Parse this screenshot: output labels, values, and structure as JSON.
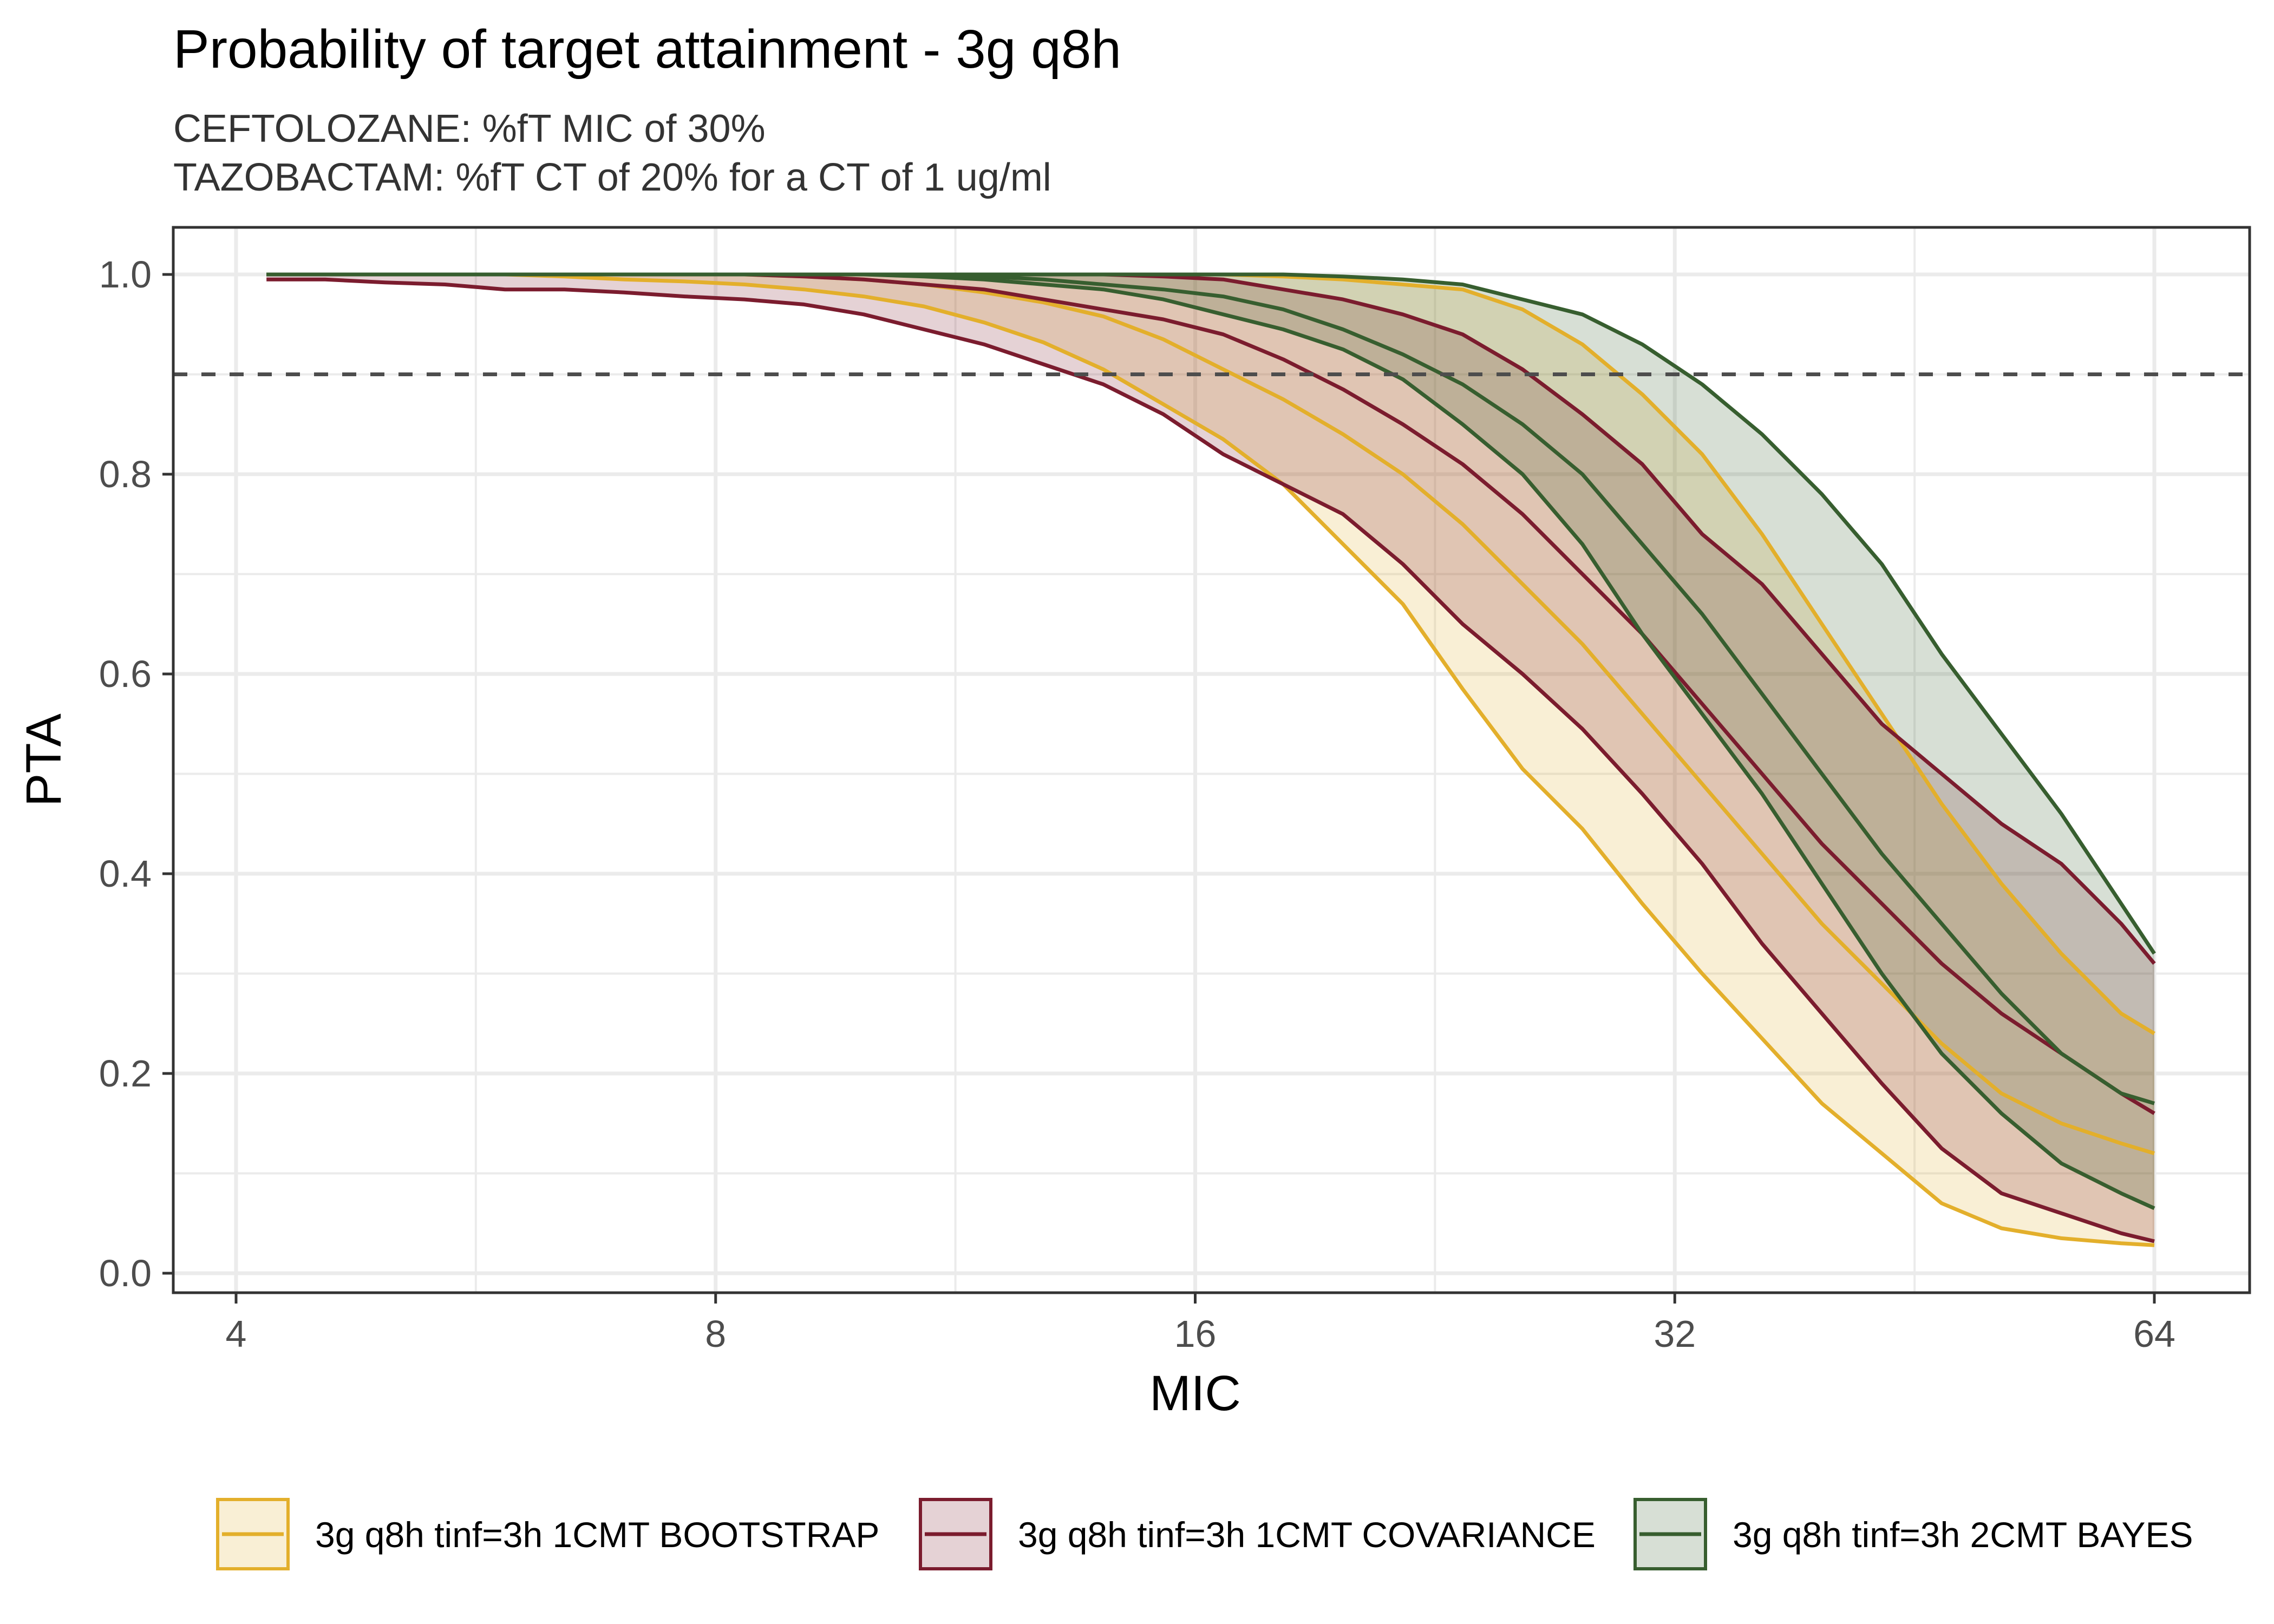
{
  "chart_data": {
    "type": "line",
    "subtype": "line with confidence ribbons",
    "title": "Probability of target attainment - 3g q8h",
    "subtitle_lines": [
      "CEFTOLOZANE: %fT MIC of 30%",
      "TAZOBACTAM: %fT CT of 20% for a CT of 1 ug/ml"
    ],
    "xlabel": "MIC",
    "ylabel": "PTA",
    "x_scale": "log2",
    "xlim": [
      3.7,
      70
    ],
    "ylim": [
      -0.02,
      1.05
    ],
    "x_ticks": [
      4,
      8,
      16,
      32,
      64
    ],
    "x_tick_labels": [
      "4",
      "8",
      "16",
      "32",
      "64"
    ],
    "y_ticks": [
      0.0,
      0.2,
      0.4,
      0.6,
      0.8,
      1.0
    ],
    "y_tick_labels": [
      "0.0",
      "0.2",
      "0.4",
      "0.6",
      "0.8",
      "1.0"
    ],
    "grid": true,
    "reference_line": {
      "y": 0.9,
      "style": "dashed",
      "color": "#4d4d4d"
    },
    "legend": {
      "position": "bottom",
      "orientation": "horizontal"
    },
    "x": [
      4.18,
      4.55,
      4.96,
      5.41,
      5.9,
      6.43,
      7.01,
      7.65,
      8.34,
      9.09,
      9.91,
      10.81,
      11.79,
      12.85,
      14.01,
      15.28,
      16.66,
      18.17,
      19.81,
      21.6,
      23.55,
      25.68,
      28.0,
      30.53,
      33.29,
      36.3,
      39.58,
      43.16,
      47.06,
      51.31,
      55.95,
      61.0,
      64.0
    ],
    "series": [
      {
        "name": "3g q8h tinf=3h 1CMT BOOTSTRAP",
        "color": "#E3AF2B",
        "fill": "#F8E8C4",
        "lower": [
          1.0,
          1.0,
          1.0,
          1.0,
          1.0,
          0.998,
          0.995,
          0.993,
          0.99,
          0.985,
          0.978,
          0.968,
          0.952,
          0.932,
          0.905,
          0.87,
          0.835,
          0.79,
          0.73,
          0.67,
          0.585,
          0.505,
          0.445,
          0.37,
          0.3,
          0.235,
          0.17,
          0.12,
          0.07,
          0.045,
          0.035,
          0.03,
          0.028
        ],
        "median": [
          1.0,
          1.0,
          1.0,
          1.0,
          1.0,
          1.0,
          1.0,
          1.0,
          1.0,
          0.998,
          0.995,
          0.99,
          0.982,
          0.972,
          0.958,
          0.935,
          0.905,
          0.875,
          0.84,
          0.8,
          0.75,
          0.69,
          0.63,
          0.56,
          0.49,
          0.42,
          0.35,
          0.29,
          0.23,
          0.18,
          0.15,
          0.13,
          0.12
        ],
        "upper": [
          1.0,
          1.0,
          1.0,
          1.0,
          1.0,
          1.0,
          1.0,
          1.0,
          1.0,
          1.0,
          1.0,
          1.0,
          1.0,
          1.0,
          1.0,
          1.0,
          1.0,
          0.998,
          0.995,
          0.99,
          0.985,
          0.965,
          0.93,
          0.88,
          0.82,
          0.74,
          0.65,
          0.56,
          0.47,
          0.39,
          0.32,
          0.26,
          0.24
        ]
      },
      {
        "name": "3g q8h tinf=3h 1CMT COVARIANCE",
        "color": "#7B1C2E",
        "fill": "#E4CFD3",
        "lower": [
          0.995,
          0.995,
          0.992,
          0.99,
          0.985,
          0.985,
          0.982,
          0.978,
          0.975,
          0.97,
          0.96,
          0.945,
          0.93,
          0.91,
          0.89,
          0.86,
          0.82,
          0.79,
          0.76,
          0.71,
          0.65,
          0.6,
          0.545,
          0.48,
          0.41,
          0.33,
          0.26,
          0.19,
          0.125,
          0.08,
          0.06,
          0.04,
          0.032
        ],
        "median": [
          1.0,
          1.0,
          1.0,
          1.0,
          1.0,
          1.0,
          1.0,
          1.0,
          1.0,
          0.998,
          0.995,
          0.99,
          0.985,
          0.975,
          0.965,
          0.955,
          0.94,
          0.915,
          0.885,
          0.85,
          0.81,
          0.76,
          0.7,
          0.64,
          0.57,
          0.5,
          0.43,
          0.37,
          0.31,
          0.26,
          0.22,
          0.18,
          0.16
        ],
        "upper": [
          1.0,
          1.0,
          1.0,
          1.0,
          1.0,
          1.0,
          1.0,
          1.0,
          1.0,
          1.0,
          1.0,
          1.0,
          1.0,
          1.0,
          1.0,
          0.998,
          0.995,
          0.985,
          0.975,
          0.96,
          0.94,
          0.905,
          0.86,
          0.81,
          0.74,
          0.69,
          0.62,
          0.55,
          0.5,
          0.45,
          0.41,
          0.35,
          0.31
        ]
      },
      {
        "name": "3g q8h tinf=3h 2CMT BAYES",
        "color": "#375E2F",
        "fill": "#D6E0D3",
        "lower": [
          1.0,
          1.0,
          1.0,
          1.0,
          1.0,
          1.0,
          1.0,
          1.0,
          1.0,
          1.0,
          1.0,
          0.998,
          0.995,
          0.99,
          0.985,
          0.975,
          0.96,
          0.945,
          0.925,
          0.895,
          0.85,
          0.8,
          0.73,
          0.64,
          0.56,
          0.48,
          0.39,
          0.3,
          0.22,
          0.16,
          0.11,
          0.08,
          0.065
        ],
        "median": [
          1.0,
          1.0,
          1.0,
          1.0,
          1.0,
          1.0,
          1.0,
          1.0,
          1.0,
          1.0,
          1.0,
          1.0,
          0.998,
          0.995,
          0.99,
          0.985,
          0.978,
          0.965,
          0.945,
          0.92,
          0.89,
          0.85,
          0.8,
          0.73,
          0.66,
          0.58,
          0.5,
          0.42,
          0.35,
          0.28,
          0.22,
          0.18,
          0.17
        ],
        "upper": [
          1.0,
          1.0,
          1.0,
          1.0,
          1.0,
          1.0,
          1.0,
          1.0,
          1.0,
          1.0,
          1.0,
          1.0,
          1.0,
          1.0,
          1.0,
          1.0,
          1.0,
          1.0,
          0.998,
          0.995,
          0.99,
          0.975,
          0.96,
          0.93,
          0.89,
          0.84,
          0.78,
          0.71,
          0.62,
          0.54,
          0.46,
          0.37,
          0.32
        ]
      }
    ]
  }
}
